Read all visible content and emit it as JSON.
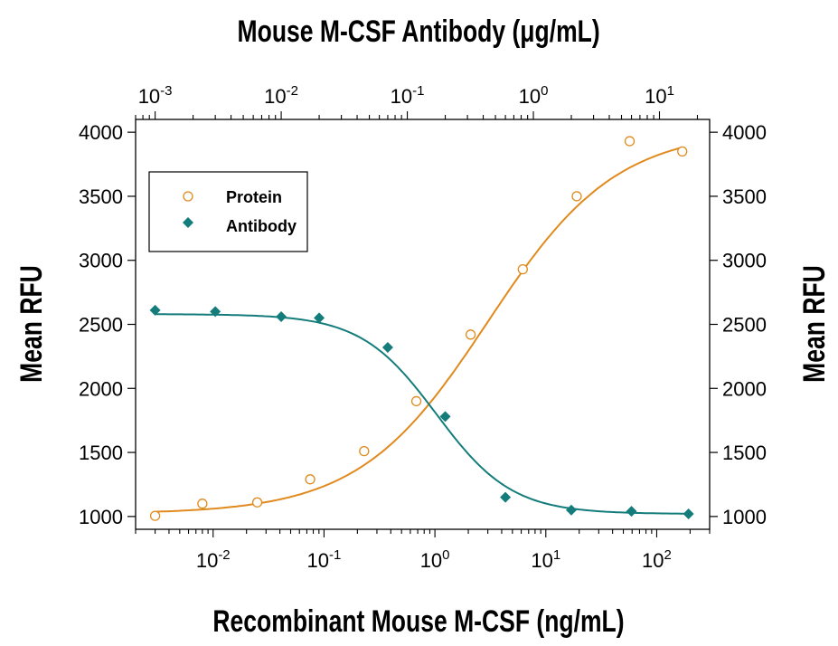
{
  "chart_data": {
    "type": "scatter",
    "title": "Mouse M-CSF Antibody (μg/mL)",
    "xlabel": "Recombinant Mouse M-CSF (ng/mL)",
    "ylabel": "Mean RFU",
    "ylabel_right": "Mean RFU",
    "x_scale": "log",
    "xlim": [
      0.002,
      300
    ],
    "ylim": [
      900,
      4100
    ],
    "y_ticks": [
      1000,
      1500,
      2000,
      2500,
      3000,
      3500,
      4000
    ],
    "y_tick_labels": [
      "1000",
      "1500",
      "2000",
      "2500",
      "3000",
      "3500",
      "4000"
    ],
    "y_ticks_right": [
      1000,
      1500,
      2000,
      2500,
      3000,
      3500,
      4000
    ],
    "y_tick_labels_right": [
      "1000",
      "1500",
      "2000",
      "2500",
      "3000",
      "3500",
      "4000"
    ],
    "x_ticks_bottom": [
      0.01,
      0.1,
      1,
      10,
      100
    ],
    "x_tick_labels_bottom": [
      {
        "base": "10",
        "exp": "-2"
      },
      {
        "base": "10",
        "exp": "-1"
      },
      {
        "base": "10",
        "exp": "0"
      },
      {
        "base": "10",
        "exp": "1"
      },
      {
        "base": "10",
        "exp": "2"
      }
    ],
    "top_axis": {
      "scale": "log",
      "xlim": [
        0.0007,
        25
      ],
      "ticks": [
        0.001,
        0.01,
        0.1,
        1,
        10
      ],
      "tick_labels": [
        {
          "base": "10",
          "exp": "-3"
        },
        {
          "base": "10",
          "exp": "-2"
        },
        {
          "base": "10",
          "exp": "-1"
        },
        {
          "base": "10",
          "exp": "0"
        },
        {
          "base": "10",
          "exp": "1"
        }
      ]
    },
    "legend": {
      "position": "top-left"
    },
    "series": [
      {
        "name": "Protein",
        "axis": "bottom",
        "marker": "open-circle",
        "color": "#E08A1E",
        "x": [
          0.003,
          0.008,
          0.025,
          0.075,
          0.23,
          0.68,
          2.1,
          6.2,
          19,
          57,
          170
        ],
        "y": [
          1005,
          1100,
          1110,
          1290,
          1510,
          1900,
          2420,
          2930,
          3500,
          3930,
          3850
        ],
        "fit": {
          "bottom": 1020,
          "top": 4020,
          "ec50": 3.0,
          "hill": 0.75
        }
      },
      {
        "name": "Antibody",
        "axis": "top",
        "marker": "filled-diamond",
        "color": "#147D7B",
        "x": [
          0.001,
          0.003,
          0.01,
          0.02,
          0.07,
          0.2,
          0.6,
          2,
          6,
          17
        ],
        "y": [
          2610,
          2600,
          2560,
          2550,
          2320,
          1780,
          1150,
          1050,
          1040,
          1020
        ],
        "fit": {
          "bottom": 1020,
          "top": 2580,
          "ec50": 0.17,
          "hill": 1.45
        }
      }
    ]
  }
}
